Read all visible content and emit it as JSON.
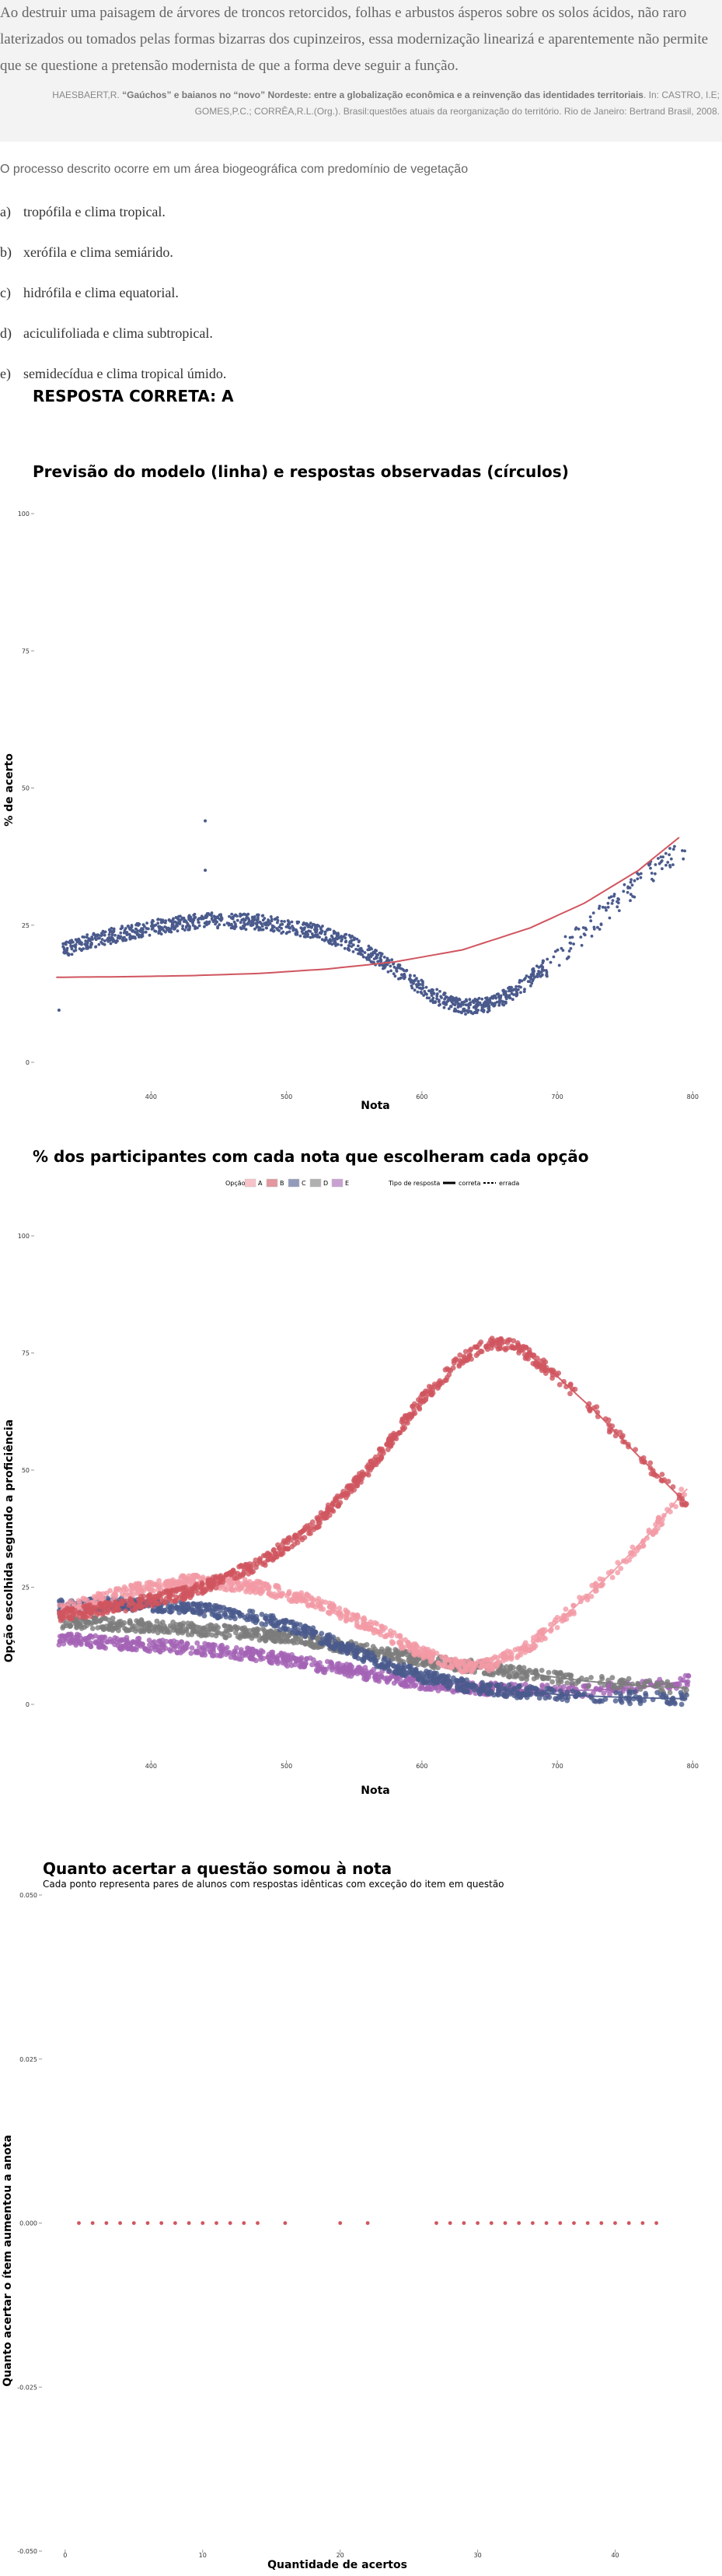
{
  "quote": {
    "text": "Ao destruir uma paisagem de árvores de troncos retorcidos, folhas e arbustos ásperos sobre os solos ácidos, não raro laterizados ou tomados pelas formas bizarras dos cupinzeiros, essa modernização linearizá e aparentemente não permite que se questione a pretensão modernista de que a forma deve seguir a função.",
    "citation_author": "HAESBAERT,R.",
    "citation_title": "“Gaúchos” e baianos no “novo” Nordeste: entre a globalização econômica e a reinvenção das identidades territoriais",
    "citation_rest": ". In: CASTRO, I.E; GOMES,P.C.; CORRÊA,R.L.(Org.). Brasil:questões atuais da reorganização do território. Rio de Janeiro: Bertrand Brasil, 2008."
  },
  "question": {
    "stem": "O processo descrito ocorre em um área biogeográfica com predomínio de vegetação",
    "options": [
      {
        "letter": "a)",
        "text": "tropófila e clima tropical."
      },
      {
        "letter": "b)",
        "text": "xerófila e clima semiárido."
      },
      {
        "letter": "c)",
        "text": "hidrófila e clima equatorial."
      },
      {
        "letter": "d)",
        "text": "aciculifoliada e clima subtropical."
      },
      {
        "letter": "e)",
        "text": "semidecídua e clima tropical úmido."
      }
    ],
    "answer": "RESPOSTA CORRETA: A"
  },
  "chart_data": [
    {
      "type": "scatter",
      "title": "Previsão do modelo (linha) e respostas observadas (círculos)",
      "xlabel": "Nota",
      "ylabel": "% de acerto",
      "xlim": [
        320,
        805
      ],
      "ylim": [
        0,
        100
      ],
      "xticks": [
        400,
        500,
        600,
        700,
        800
      ],
      "yticks": [
        0,
        25,
        50,
        75,
        100
      ],
      "colors": {
        "points": "#4a5a8c",
        "line": "#d0555f"
      },
      "model_line": {
        "x": [
          330,
          380,
          430,
          480,
          530,
          580,
          630,
          680,
          720,
          760,
          790
        ],
        "y": [
          15.5,
          15.6,
          15.8,
          16.2,
          17.0,
          18.3,
          20.5,
          24.5,
          29.0,
          35.0,
          41.0
        ]
      },
      "observed_trend": {
        "x": [
          330,
          360,
          400,
          440,
          480,
          520,
          550,
          580,
          610,
          630,
          650,
          670,
          700,
          730,
          760,
          790
        ],
        "y": [
          20,
          22.5,
          24.5,
          26,
          25.5,
          24,
          21.5,
          17,
          12,
          10,
          10.5,
          13,
          19.5,
          26,
          33,
          38
        ]
      },
      "outliers": [
        {
          "x": 440,
          "y": 44
        },
        {
          "x": 440,
          "y": 35
        },
        {
          "x": 332,
          "y": 9.5
        }
      ]
    },
    {
      "type": "scatter",
      "title": "% dos participantes com cada nota que escolheram cada opção",
      "xlabel": "Nota",
      "ylabel": "Opção escolhida segundo a proficiência",
      "xlim": [
        320,
        805
      ],
      "ylim": [
        0,
        100
      ],
      "xticks": [
        400,
        500,
        600,
        700,
        800
      ],
      "yticks": [
        0,
        25,
        50,
        75,
        100
      ],
      "legend": {
        "title_options": "Opção",
        "options": [
          "A",
          "B",
          "C",
          "D",
          "E"
        ],
        "title_type": "Tipo de resposta",
        "types": [
          "correta",
          "errada"
        ]
      },
      "series": [
        {
          "name": "A",
          "color": "#f29aa5",
          "x": [
            330,
            380,
            430,
            480,
            520,
            560,
            600,
            630,
            650,
            680,
            710,
            740,
            770,
            795
          ],
          "y": [
            20,
            24,
            26.5,
            25,
            22,
            17,
            11,
            8,
            8.5,
            12.5,
            20,
            28,
            37,
            46
          ]
        },
        {
          "name": "B",
          "color": "#d0555f",
          "x": [
            330,
            380,
            430,
            480,
            520,
            560,
            600,
            630,
            650,
            670,
            700,
            730,
            760,
            795
          ],
          "y": [
            19,
            21,
            24,
            30,
            38,
            50,
            65,
            74,
            77,
            76.5,
            70,
            62,
            53,
            43
          ]
        },
        {
          "name": "C",
          "color": "#4a5a8c",
          "x": [
            330,
            380,
            430,
            480,
            520,
            560,
            600,
            640,
            680,
            720,
            760,
            795
          ],
          "y": [
            21,
            21.5,
            20.5,
            18.5,
            15,
            10,
            6,
            3.5,
            2.5,
            1.8,
            1.4,
            1.2
          ]
        },
        {
          "name": "D",
          "color": "#7c7c7c",
          "x": [
            330,
            380,
            430,
            480,
            520,
            560,
            600,
            640,
            680,
            720,
            760,
            795
          ],
          "y": [
            17.5,
            17,
            16,
            15,
            13.5,
            11.5,
            9.5,
            8,
            6.5,
            5,
            4,
            3.5
          ]
        },
        {
          "name": "E",
          "color": "#a463b5",
          "x": [
            330,
            380,
            430,
            480,
            520,
            560,
            600,
            640,
            680,
            720,
            760,
            795
          ],
          "y": [
            14,
            13,
            12,
            10.5,
            8.5,
            6.5,
            4.5,
            3.5,
            3,
            3,
            3.5,
            5
          ]
        }
      ]
    },
    {
      "type": "scatter",
      "title": "Quanto acertar a questão somou à nota",
      "subtitle": "Cada ponto representa pares de alunos com respostas idênticas com exceção do item em questão",
      "xlabel": "Quantidade de acertos",
      "ylabel": "Quanto acertar o ítem aumentou a anota",
      "xlim": [
        -0.5,
        45
      ],
      "ylim": [
        -0.05,
        0.05
      ],
      "xticks": [
        0,
        10,
        20,
        30,
        40
      ],
      "yticks": [
        -0.05,
        -0.025,
        0,
        0.025,
        0.05
      ],
      "ytick_labels": [
        "-0.050",
        "-0.025",
        "0.000",
        "0.025",
        "0.050"
      ],
      "color": "#d0555f",
      "x": [
        1,
        2,
        3,
        4,
        5,
        6,
        7,
        8,
        9,
        10,
        11,
        12,
        13,
        14,
        16,
        20,
        22,
        27,
        28,
        29,
        30,
        31,
        32,
        33,
        34,
        35,
        36,
        37,
        38,
        39,
        40,
        41,
        42,
        43
      ],
      "y": [
        0,
        0,
        0,
        0,
        0,
        0,
        0,
        0,
        0,
        0,
        0,
        0,
        0,
        0,
        0,
        0,
        0,
        0,
        0,
        0,
        0,
        0,
        0,
        0,
        0,
        0,
        0,
        0,
        0,
        0,
        0,
        0,
        0,
        0
      ]
    }
  ]
}
